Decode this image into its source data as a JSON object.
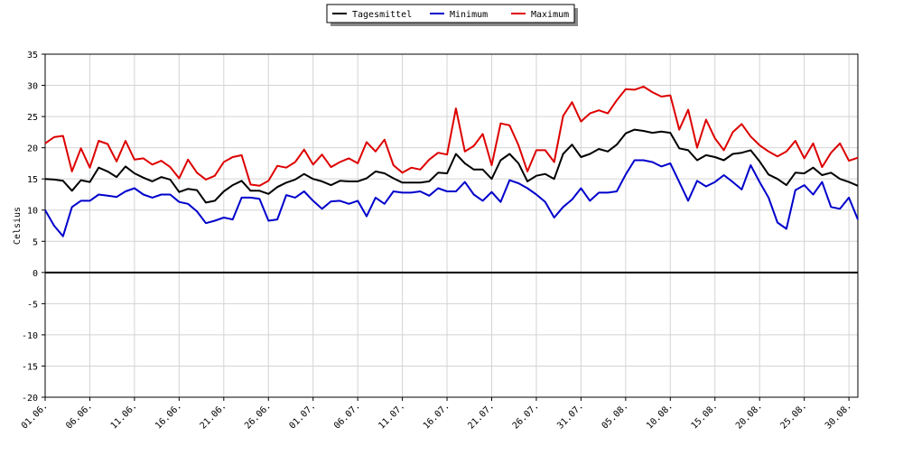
{
  "chart_data": {
    "type": "line",
    "ylabel": "Celsius",
    "ylim": [
      -20,
      35
    ],
    "yticks": [
      -20,
      -15,
      -10,
      -5,
      0,
      5,
      10,
      15,
      20,
      25,
      30,
      35
    ],
    "grid": true,
    "legend_position": "top-center",
    "x_start": "01.06.",
    "x_tick_labels": [
      "01.06.",
      "06.06.",
      "11.06.",
      "16.06.",
      "21.06.",
      "26.06.",
      "01.07.",
      "06.07.",
      "11.07.",
      "16.07.",
      "21.07.",
      "26.07.",
      "31.07.",
      "05.08.",
      "10.08.",
      "15.08.",
      "20.08.",
      "25.08.",
      "30.08."
    ],
    "series": [
      {
        "name": "Tagesmittel",
        "color": "#000000",
        "values": [
          15.0,
          14.9,
          14.7,
          13.1,
          14.8,
          14.5,
          16.8,
          16.2,
          15.3,
          17.0,
          15.9,
          15.2,
          14.6,
          15.3,
          14.9,
          12.9,
          13.4,
          13.2,
          11.2,
          11.5,
          13.0,
          14.0,
          14.7,
          13.1,
          13.1,
          12.6,
          13.7,
          14.4,
          14.9,
          15.8,
          15.0,
          14.6,
          14.0,
          14.7,
          14.6,
          14.6,
          15.1,
          16.2,
          15.9,
          15.1,
          14.4,
          14.4,
          14.4,
          14.6,
          16.0,
          15.9,
          19.0,
          17.5,
          16.5,
          16.5,
          15.0,
          18.0,
          19.0,
          17.5,
          14.6,
          15.5,
          15.8,
          15.0,
          19.0,
          20.5,
          18.5,
          19.0,
          19.8,
          19.4,
          20.5,
          22.3,
          22.9,
          22.7,
          22.4,
          22.6,
          22.4,
          19.9,
          19.6,
          18.0,
          18.8,
          18.5,
          18.0,
          19.0,
          19.2,
          19.6,
          17.8,
          15.7,
          15.0,
          14.0,
          16.0,
          15.9,
          16.8,
          15.6,
          16.0,
          15.0,
          14.5,
          13.9
        ]
      },
      {
        "name": "Minimum",
        "color": "#0000cc",
        "values": [
          10.0,
          7.5,
          5.8,
          10.5,
          11.5,
          11.5,
          12.5,
          12.3,
          12.1,
          13.0,
          13.5,
          12.5,
          12.0,
          12.5,
          12.5,
          11.3,
          11.0,
          9.8,
          7.9,
          8.3,
          8.8,
          8.5,
          12.0,
          12.0,
          11.8,
          8.3,
          8.5,
          12.4,
          12.0,
          13.0,
          11.5,
          10.2,
          11.4,
          11.5,
          11.0,
          11.5,
          9.0,
          12.0,
          11.0,
          13.0,
          12.8,
          12.8,
          13.0,
          12.3,
          13.5,
          13.0,
          13.0,
          14.5,
          12.5,
          11.5,
          12.9,
          11.3,
          14.8,
          14.3,
          13.5,
          12.5,
          11.3,
          8.8,
          10.5,
          11.7,
          13.5,
          11.5,
          12.8,
          12.8,
          13.0,
          15.7,
          18.0,
          18.0,
          17.7,
          17.0,
          17.5,
          14.5,
          11.5,
          14.7,
          13.8,
          14.5,
          15.6,
          14.5,
          13.3,
          17.2,
          14.5,
          12.0,
          8.0,
          7.0,
          13.2,
          14.0,
          12.5,
          14.5,
          10.5,
          10.2,
          12.0,
          8.5
        ]
      },
      {
        "name": "Maximum",
        "color": "#dd0000",
        "values": [
          20.7,
          21.7,
          21.9,
          16.2,
          19.9,
          16.8,
          21.1,
          20.6,
          17.8,
          21.1,
          18.1,
          18.3,
          17.3,
          17.9,
          16.9,
          15.1,
          18.1,
          16.0,
          14.9,
          15.5,
          17.7,
          18.5,
          18.8,
          14.1,
          13.9,
          14.7,
          17.1,
          16.8,
          17.7,
          19.7,
          17.3,
          18.9,
          16.9,
          17.7,
          18.3,
          17.5,
          20.9,
          19.4,
          21.3,
          17.2,
          16.0,
          16.8,
          16.5,
          18.1,
          19.2,
          18.9,
          26.3,
          19.4,
          20.3,
          22.2,
          17.2,
          23.9,
          23.6,
          20.4,
          16.2,
          19.6,
          19.6,
          17.7,
          25.1,
          27.3,
          24.2,
          25.5,
          26.0,
          25.5,
          27.6,
          29.4,
          29.3,
          29.8,
          28.9,
          28.2,
          28.4,
          22.9,
          26.1,
          20.0,
          24.5,
          21.5,
          19.6,
          22.5,
          23.8,
          21.8,
          20.4,
          19.4,
          18.6,
          19.4,
          21.1,
          18.3,
          20.7,
          16.9,
          19.2,
          20.7,
          17.9,
          18.4
        ]
      }
    ]
  }
}
